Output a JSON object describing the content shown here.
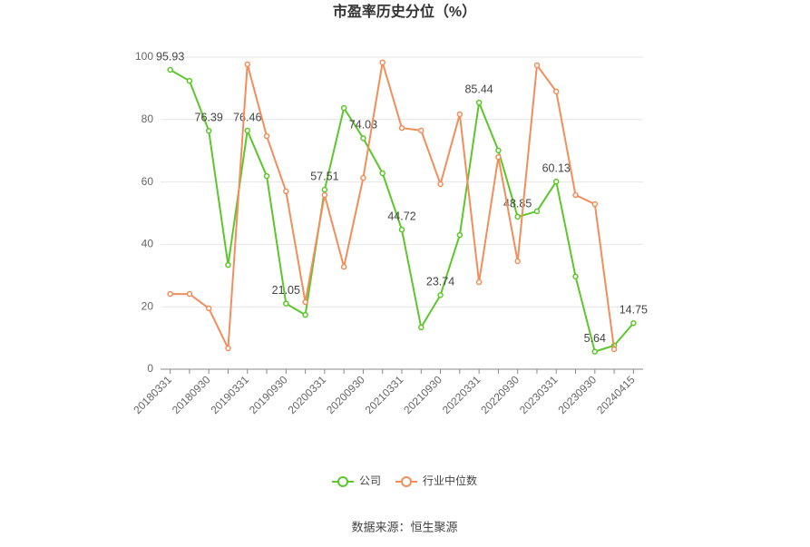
{
  "chart_data": {
    "type": "line",
    "title": "市盈率历史分位（%）",
    "source": "数据来源：恒生聚源",
    "categories": [
      "20180331",
      null,
      "20180930",
      null,
      "20190331",
      null,
      "20190930",
      null,
      "20200331",
      null,
      "20200930",
      null,
      "20210331",
      null,
      "20210930",
      null,
      "20220331",
      null,
      "20220930",
      null,
      "20230331",
      null,
      "20230930",
      null,
      "20240415"
    ],
    "series": [
      {
        "name": "公司",
        "color": "#5cc72a",
        "values": [
          95.93,
          92.4,
          76.39,
          33.4,
          76.46,
          61.9,
          21.05,
          17.4,
          57.51,
          83.7,
          74.03,
          62.8,
          44.72,
          13.4,
          23.74,
          43.0,
          85.44,
          70.1,
          48.85,
          50.6,
          60.13,
          29.7,
          5.64,
          7.6,
          14.75
        ],
        "value_labels": [
          "95.93",
          null,
          "76.39",
          null,
          "76.46",
          null,
          "21.05",
          null,
          "57.51",
          null,
          "74.03",
          null,
          "44.72",
          null,
          "23.74",
          null,
          "85.44",
          null,
          "48.85",
          null,
          "60.13",
          null,
          "5.64",
          null,
          "14.75"
        ]
      },
      {
        "name": "行业中位数",
        "color": "#f28e5b",
        "values": [
          24.1,
          24.1,
          19.5,
          6.7,
          97.7,
          74.7,
          57.0,
          21.5,
          55.8,
          32.8,
          61.3,
          98.3,
          77.3,
          76.5,
          59.3,
          81.7,
          27.9,
          68.0,
          34.6,
          97.4,
          89.0,
          55.8,
          52.9,
          6.4,
          null
        ]
      }
    ],
    "ylim": [
      0,
      100
    ],
    "yticks": [
      0,
      20,
      40,
      60,
      80,
      100
    ],
    "grid": true
  }
}
